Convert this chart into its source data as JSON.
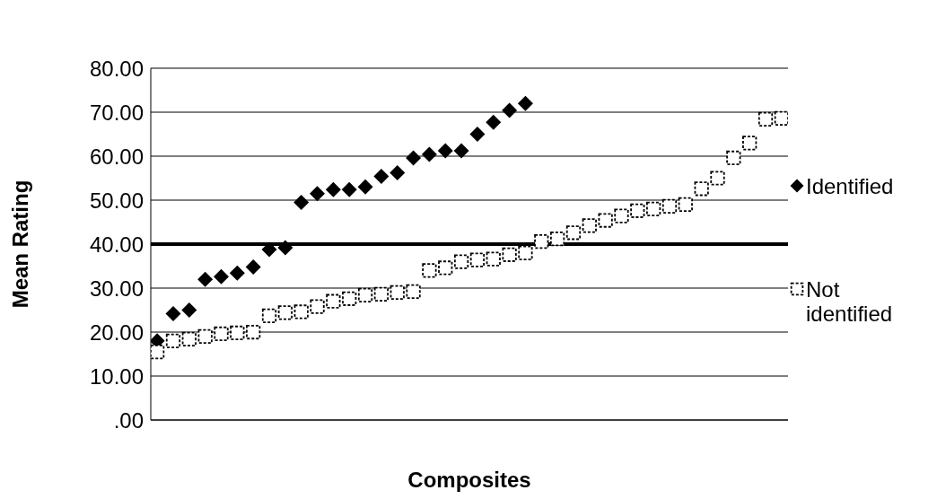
{
  "chart_data": {
    "type": "scatter",
    "xlabel": "Composites",
    "ylabel": "Mean Rating",
    "categories": [
      null,
      null,
      null,
      null,
      null,
      null,
      null,
      null,
      null,
      null,
      null,
      null,
      null,
      null,
      null,
      null,
      null,
      null,
      null,
      null,
      null,
      null,
      null,
      null,
      null,
      null,
      null,
      null,
      null,
      null,
      null,
      null,
      null,
      null,
      null,
      null,
      null,
      null,
      null,
      null
    ],
    "series": [
      {
        "name": "Identified",
        "color": "#000000",
        "marker": "diamond",
        "values": [
          18,
          24.2,
          25,
          32,
          32.6,
          33.4,
          34.8,
          38.8,
          39.2,
          49.5,
          51.5,
          52.4,
          52.4,
          53,
          55.4,
          56.2,
          59.6,
          60.4,
          61.2,
          61.2,
          65,
          67.7,
          70.4,
          72,
          null,
          null,
          null,
          null,
          null,
          null,
          null,
          null,
          null,
          null,
          null,
          null,
          null,
          null,
          null,
          null
        ]
      },
      {
        "name": "Not identified",
        "color": "#000000",
        "marker": "square",
        "values": [
          15.5,
          18,
          18.4,
          19,
          19.6,
          19.8,
          20,
          23.7,
          24.4,
          24.6,
          25.8,
          27,
          27.6,
          28.4,
          28.6,
          29,
          29.2,
          34,
          34.6,
          36,
          36.4,
          36.6,
          37.6,
          38,
          40.6,
          41.2,
          42.6,
          44.2,
          45.4,
          46.4,
          47.6,
          48,
          48.6,
          49,
          52.6,
          55,
          59.6,
          63,
          68.4,
          68.6
        ]
      }
    ],
    "ylim": [
      0,
      80
    ],
    "yticks": [
      {
        "value": 0,
        "label": ".00"
      },
      {
        "value": 10,
        "label": "10.00"
      },
      {
        "value": 20,
        "label": "20.00"
      },
      {
        "value": 30,
        "label": "30.00"
      },
      {
        "value": 40,
        "label": "40.00"
      },
      {
        "value": 50,
        "label": "50.00"
      },
      {
        "value": 60,
        "label": "60.00"
      },
      {
        "value": 70,
        "label": "70.00"
      },
      {
        "value": 80,
        "label": "80.00"
      }
    ],
    "grid": "y",
    "legend": "right",
    "ref_lines": [
      {
        "axis": "y",
        "value": 40,
        "color": "#000000"
      }
    ]
  }
}
